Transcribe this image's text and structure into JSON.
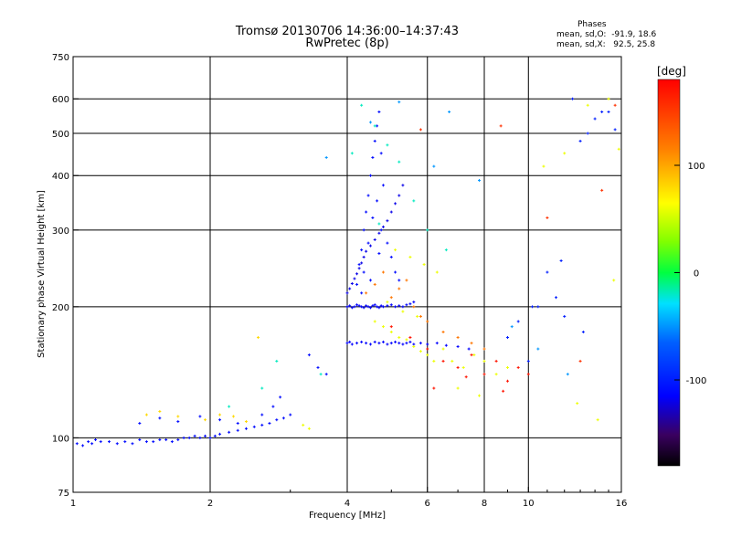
{
  "header": {
    "title_line1": "Tromsø 20130706 14:36:00–14:37:43",
    "title_line2": "RwPretec (8p)",
    "stats_heading": "Phases",
    "stats_o": "mean, sd,O:  -91.9, 18.6",
    "stats_x": "mean, sd,X:   92.5, 25.8"
  },
  "chart_data": {
    "type": "scatter",
    "xlabel": "Frequency [MHz]",
    "ylabel": "Stationary phase Virtual Height [km]",
    "x_scale": "log",
    "y_scale": "log",
    "xlim": [
      1,
      16
    ],
    "ylim": [
      75,
      750
    ],
    "x_ticks": [
      1,
      2,
      4,
      6,
      8,
      10,
      16
    ],
    "x_tick_labels": [
      "1",
      "2",
      "4",
      "6",
      "8",
      "10",
      "16"
    ],
    "y_ticks": [
      75,
      100,
      200,
      300,
      400,
      500,
      600,
      750
    ],
    "y_tick_labels": [
      "75",
      "100",
      "200",
      "300",
      "400",
      "500",
      "600",
      "750"
    ],
    "grid": true,
    "colorbar": {
      "label": "[deg]",
      "range": [
        -180,
        180
      ],
      "ticks": [
        100,
        0,
        -100
      ],
      "tick_labels": [
        "100",
        "0",
        "-100"
      ]
    },
    "series": [
      {
        "color_value": -110,
        "x": [
          1.02,
          1.05,
          1.08,
          1.1,
          1.12,
          1.15,
          1.2,
          1.25,
          1.3,
          1.35,
          1.4,
          1.45,
          1.5,
          1.55,
          1.6,
          1.65,
          1.7,
          1.75,
          1.8,
          1.85,
          1.9,
          1.95,
          2.0,
          2.05,
          2.1,
          2.2,
          2.3,
          2.4,
          2.5,
          2.6,
          2.7,
          2.8,
          2.9,
          3.0,
          1.4,
          1.55,
          1.7,
          1.9,
          2.1,
          2.3,
          2.6,
          2.75,
          2.85,
          3.3,
          3.45,
          3.6
        ],
        "y": [
          97,
          96,
          98,
          97,
          99,
          98,
          98,
          97,
          98,
          97,
          99,
          98,
          98,
          99,
          99,
          98,
          99,
          100,
          100,
          101,
          100,
          101,
          100,
          101,
          102,
          103,
          104,
          105,
          106,
          107,
          108,
          110,
          111,
          113,
          108,
          111,
          109,
          112,
          110,
          108,
          113,
          118,
          124,
          155,
          145,
          140
        ]
      },
      {
        "color_value": -115,
        "x": [
          4.0,
          4.05,
          4.1,
          4.15,
          4.2,
          4.25,
          4.3,
          4.35,
          4.4,
          4.45,
          4.5,
          4.55,
          4.6,
          4.65,
          4.7,
          4.75,
          4.8,
          4.9,
          5.0,
          5.1,
          5.2,
          5.3,
          5.4,
          5.5,
          5.6
        ],
        "y": [
          200,
          201,
          199,
          200,
          202,
          201,
          200,
          199,
          201,
          200,
          199,
          201,
          202,
          200,
          199,
          201,
          200,
          201,
          202,
          200,
          201,
          200,
          202,
          203,
          205
        ]
      },
      {
        "color_value": -115,
        "x": [
          4.0,
          4.05,
          4.1,
          4.2,
          4.3,
          4.4,
          4.5,
          4.6,
          4.7,
          4.8,
          4.9,
          5.0,
          5.1,
          5.2,
          5.3,
          5.4,
          5.5,
          5.6,
          5.8,
          6.0,
          6.3,
          6.6,
          7.0,
          7.4
        ],
        "y": [
          165,
          166,
          164,
          165,
          166,
          165,
          164,
          166,
          165,
          166,
          164,
          165,
          166,
          165,
          164,
          165,
          166,
          164,
          165,
          164,
          165,
          163,
          162,
          160
        ]
      },
      {
        "color_value": -110,
        "x": [
          4.2,
          4.25,
          4.3,
          4.35,
          4.4,
          4.45,
          4.5,
          4.55,
          4.6,
          4.65,
          4.7,
          4.75,
          4.8,
          4.35,
          4.45,
          4.55,
          4.65,
          4.75,
          4.9,
          5.0,
          5.1,
          5.2,
          4.3,
          4.5,
          4.7
        ],
        "y": [
          225,
          250,
          270,
          300,
          330,
          360,
          400,
          440,
          480,
          520,
          560,
          450,
          380,
          240,
          280,
          320,
          350,
          300,
          280,
          260,
          240,
          230,
          215,
          230,
          265
        ]
      },
      {
        "color_value": -120,
        "x": [
          4.0,
          4.05,
          4.1,
          4.15,
          4.2,
          4.25,
          4.3,
          4.35,
          4.4,
          4.5,
          4.6,
          4.7,
          4.8,
          4.9,
          5.0,
          5.1,
          5.2,
          5.3
        ],
        "y": [
          215,
          220,
          226,
          232,
          238,
          245,
          252,
          260,
          268,
          276,
          285,
          295,
          305,
          315,
          330,
          345,
          360,
          380
        ]
      },
      {
        "color_value": 60,
        "x": [
          4.6,
          4.8,
          5.0,
          5.2,
          5.4,
          5.6,
          5.8,
          6.0,
          6.2,
          6.5,
          6.8,
          7.2,
          7.6,
          8.0,
          8.5,
          9.0,
          5.1,
          5.5,
          5.9,
          6.3,
          7.0,
          7.8,
          4.9,
          5.3,
          5.7,
          3.2,
          3.3
        ],
        "y": [
          185,
          180,
          175,
          170,
          168,
          162,
          158,
          155,
          150,
          160,
          150,
          145,
          155,
          150,
          140,
          145,
          270,
          260,
          250,
          240,
          130,
          125,
          205,
          195,
          190,
          107,
          105
        ]
      },
      {
        "color_value": 170,
        "x": [
          5.0,
          5.5,
          6.0,
          6.5,
          7.0,
          7.5,
          8.0,
          8.5,
          9.0,
          9.5,
          10.0,
          6.2,
          7.3,
          8.8
        ],
        "y": [
          180,
          170,
          160,
          150,
          145,
          155,
          140,
          150,
          135,
          145,
          140,
          130,
          138,
          128
        ]
      },
      {
        "color_value": 120,
        "x": [
          4.4,
          4.6,
          4.8,
          5.0,
          5.2,
          5.4,
          5.6,
          5.8,
          6.0,
          6.5,
          7.0,
          7.5,
          8.0
        ],
        "y": [
          215,
          225,
          240,
          210,
          220,
          230,
          200,
          190,
          185,
          175,
          170,
          165,
          160
        ]
      },
      {
        "color_value": -20,
        "x": [
          2.2,
          2.6,
          2.8,
          3.5,
          4.3,
          4.6,
          4.9,
          5.2,
          5.6,
          6.0,
          6.6,
          4.1,
          4.7
        ],
        "y": [
          118,
          130,
          150,
          140,
          580,
          520,
          470,
          430,
          350,
          300,
          270,
          450,
          310
        ]
      },
      {
        "color_value": 80,
        "x": [
          1.45,
          1.55,
          1.7,
          1.95,
          2.1,
          2.25,
          2.4,
          2.55
        ],
        "y": [
          113,
          115,
          112,
          110,
          113,
          112,
          109,
          170
        ]
      },
      {
        "color_value": -100,
        "x": [
          9.0,
          9.5,
          10.0,
          10.5,
          11.0,
          11.5,
          12.0,
          12.5,
          13.0,
          13.5,
          14.0,
          14.5,
          15.0,
          15.5,
          10.2,
          11.8,
          13.2
        ],
        "y": [
          170,
          185,
          150,
          200,
          240,
          210,
          190,
          600,
          480,
          500,
          540,
          560,
          560,
          510,
          200,
          255,
          175
        ]
      },
      {
        "color_value": 60,
        "x": [
          12.0,
          13.5,
          15.0,
          15.8,
          14.2,
          12.8,
          10.8,
          15.4
        ],
        "y": [
          450,
          580,
          600,
          460,
          110,
          120,
          420,
          230
        ]
      },
      {
        "color_value": 155,
        "x": [
          5.8,
          8.7,
          14.5,
          15.5,
          11.0,
          13.0
        ],
        "y": [
          510,
          520,
          370,
          580,
          320,
          150
        ]
      },
      {
        "color_value": -50,
        "x": [
          6.7,
          3.6,
          4.5,
          5.2,
          6.2,
          7.8,
          9.2,
          10.5,
          12.2
        ],
        "y": [
          560,
          440,
          530,
          590,
          420,
          390,
          180,
          160,
          140
        ]
      }
    ]
  }
}
